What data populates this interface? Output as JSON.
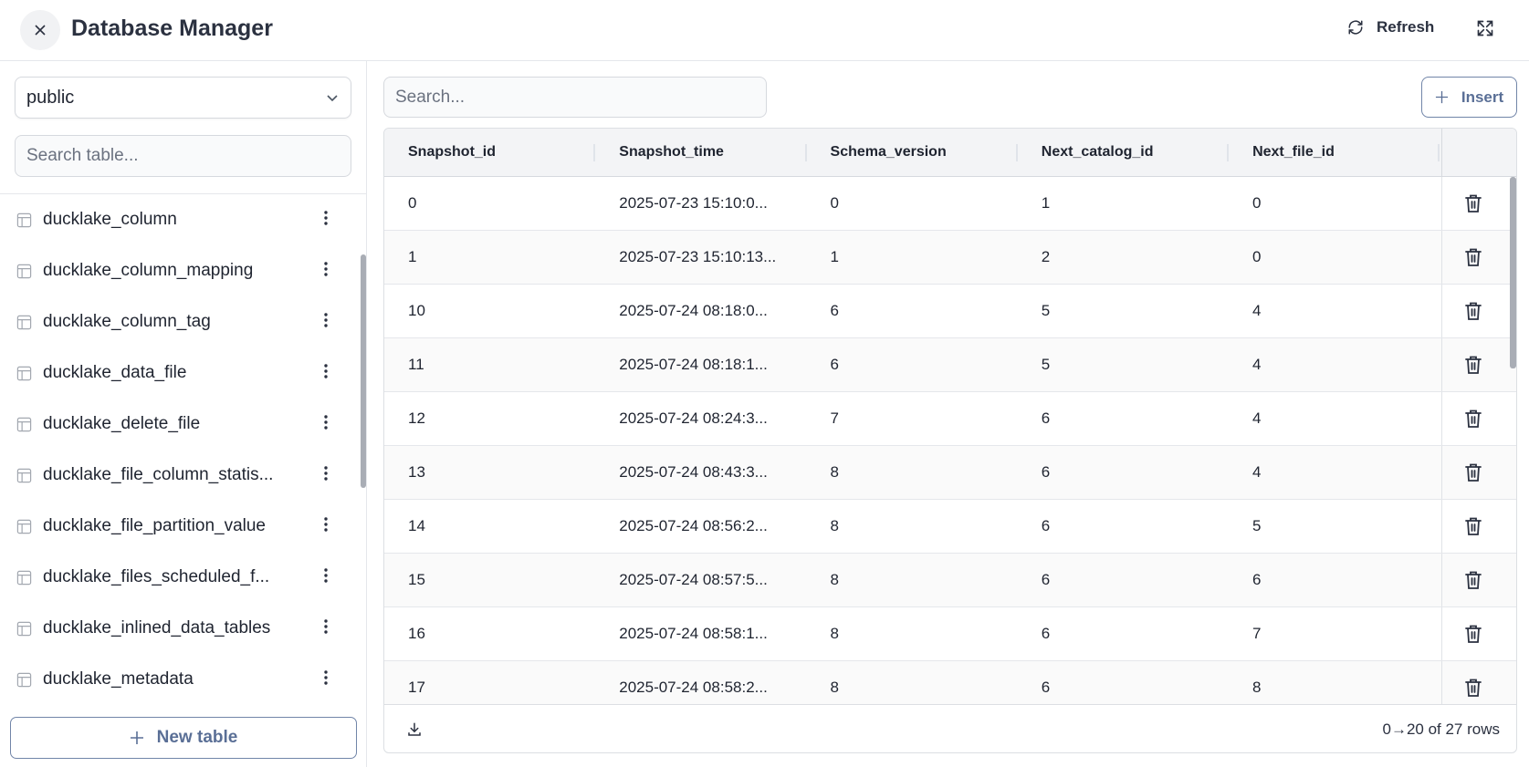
{
  "header": {
    "title": "Database Manager",
    "refresh_label": "Refresh"
  },
  "sidebar": {
    "schema_select": "public",
    "search_placeholder": "Search table...",
    "tables": [
      "ducklake_column",
      "ducklake_column_mapping",
      "ducklake_column_tag",
      "ducklake_data_file",
      "ducklake_delete_file",
      "ducklake_file_column_statis...",
      "ducklake_file_partition_value",
      "ducklake_files_scheduled_f...",
      "ducklake_inlined_data_tables",
      "ducklake_metadata"
    ],
    "new_table_label": "New table"
  },
  "main": {
    "search_placeholder": "Search...",
    "insert_label": "Insert",
    "columns": [
      "Snapshot_id",
      "Snapshot_time",
      "Schema_version",
      "Next_catalog_id",
      "Next_file_id"
    ],
    "rows": [
      [
        "0",
        "2025-07-23 15:10:0...",
        "0",
        "1",
        "0"
      ],
      [
        "1",
        "2025-07-23 15:10:13...",
        "1",
        "2",
        "0"
      ],
      [
        "10",
        "2025-07-24 08:18:0...",
        "6",
        "5",
        "4"
      ],
      [
        "11",
        "2025-07-24 08:18:1...",
        "6",
        "5",
        "4"
      ],
      [
        "12",
        "2025-07-24 08:24:3...",
        "7",
        "6",
        "4"
      ],
      [
        "13",
        "2025-07-24 08:43:3...",
        "8",
        "6",
        "4"
      ],
      [
        "14",
        "2025-07-24 08:56:2...",
        "8",
        "6",
        "5"
      ],
      [
        "15",
        "2025-07-24 08:57:5...",
        "8",
        "6",
        "6"
      ],
      [
        "16",
        "2025-07-24 08:58:1...",
        "8",
        "6",
        "7"
      ],
      [
        "17",
        "2025-07-24 08:58:2...",
        "8",
        "6",
        "8"
      ]
    ],
    "row_count": "0→20 of 27 rows"
  }
}
